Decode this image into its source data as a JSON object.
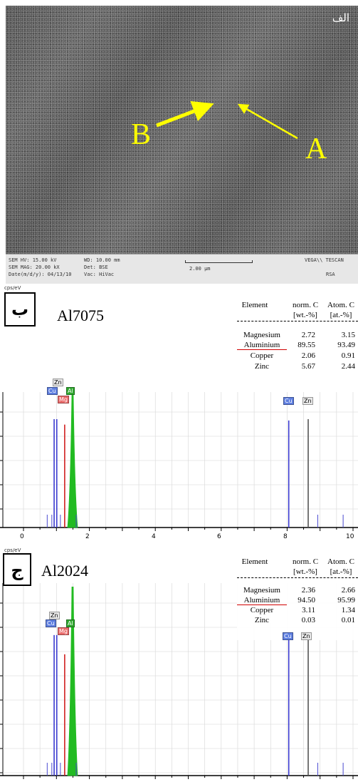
{
  "sem": {
    "label": "الف",
    "marker_a": "A",
    "marker_b": "B",
    "info": {
      "line1": "SEM HV: 15.00 kV",
      "line2": "SEM MAG: 20.00 kX",
      "line3": "Date(m/d/y): 04/13/10",
      "col2_line1": "WD: 10.00 mm",
      "col2_line2": "Det: BSE",
      "col2_line3": "Vac: HiVac",
      "scale": "2.00 µm",
      "right_line1": "VEGA\\\\ TESCAN",
      "right_line2": "RSA"
    }
  },
  "eds_top": {
    "panel_label": "ب",
    "alloy": "Al7075",
    "cps": "cps/eV",
    "table": {
      "h_element": "Element",
      "h_norm_1": "norm. C",
      "h_norm_2": "[wt.-%]",
      "h_atom_1": "Atom. C",
      "h_atom_2": "[at.-%]",
      "rows": [
        {
          "el": "Magnesium",
          "norm": "2.72",
          "atom": "3.15"
        },
        {
          "el": "Aluminium",
          "norm": "89.55",
          "atom": "93.49"
        },
        {
          "el": "Copper",
          "norm": "2.06",
          "atom": "0.91"
        },
        {
          "el": "Zinc",
          "norm": "5.67",
          "atom": "2.44"
        }
      ]
    },
    "peak_labels": {
      "zn": "Zn",
      "cu": "Cu",
      "mg": "Mg",
      "al": "Al",
      "cu2": "Cu",
      "zn2": "Zn"
    },
    "ticks": [
      "0",
      "2",
      "4",
      "6",
      "8",
      "10"
    ]
  },
  "eds_bottom": {
    "panel_label": "ج",
    "alloy": "Al2024",
    "cps": "cps/eV",
    "table": {
      "h_element": "Element",
      "h_norm_1": "norm. C",
      "h_norm_2": "[wt.-%]",
      "h_atom_1": "Atom. C",
      "h_atom_2": "[at.-%]",
      "rows": [
        {
          "el": "Magnesium",
          "norm": "2.36",
          "atom": "2.66"
        },
        {
          "el": "Aluminium",
          "norm": "94.50",
          "atom": "95.99"
        },
        {
          "el": "Copper",
          "norm": "3.11",
          "atom": "1.34"
        },
        {
          "el": "Zinc",
          "norm": "0.03",
          "atom": "0.01"
        }
      ]
    },
    "peak_labels": {
      "zn": "Zn",
      "cu": "Cu",
      "mg": "Mg",
      "al": "Al",
      "cu2": "Cu",
      "zn2": "Zn"
    }
  },
  "chart_data": [
    {
      "type": "line",
      "alloy": "Al7075",
      "xlim": [
        0,
        10
      ],
      "grid": true,
      "peaks": [
        {
          "name": "Cu",
          "x": 0.93,
          "h": 0.8,
          "color": "#3a3ad0"
        },
        {
          "name": "Zn",
          "x": 1.01,
          "h": 0.8,
          "color": "#3a3ad0"
        },
        {
          "name": "Mg",
          "x": 1.25,
          "h": 0.76,
          "color": "#d02020"
        },
        {
          "name": "Al",
          "x": 1.49,
          "h": 0.98,
          "color": "#22bb22"
        },
        {
          "name": "Cu",
          "x": 8.05,
          "h": 0.79,
          "color": "#3a3ad0"
        },
        {
          "name": "Zn",
          "x": 8.64,
          "h": 0.8,
          "color": "#555555"
        }
      ]
    },
    {
      "type": "line",
      "alloy": "Al2024",
      "xlim": [
        0,
        10
      ],
      "grid": true,
      "peaks": [
        {
          "name": "Cu",
          "x": 0.93,
          "h": 0.73,
          "color": "#3a3ad0"
        },
        {
          "name": "Zn",
          "x": 1.01,
          "h": 0.73,
          "color": "#3a3ad0"
        },
        {
          "name": "Mg",
          "x": 1.25,
          "h": 0.63,
          "color": "#d02020"
        },
        {
          "name": "Al",
          "x": 1.49,
          "h": 0.98,
          "color": "#22bb22"
        },
        {
          "name": "Cu",
          "x": 8.05,
          "h": 0.72,
          "color": "#3a3ad0"
        },
        {
          "name": "Zn",
          "x": 8.64,
          "h": 0.72,
          "color": "#555555"
        }
      ]
    }
  ]
}
